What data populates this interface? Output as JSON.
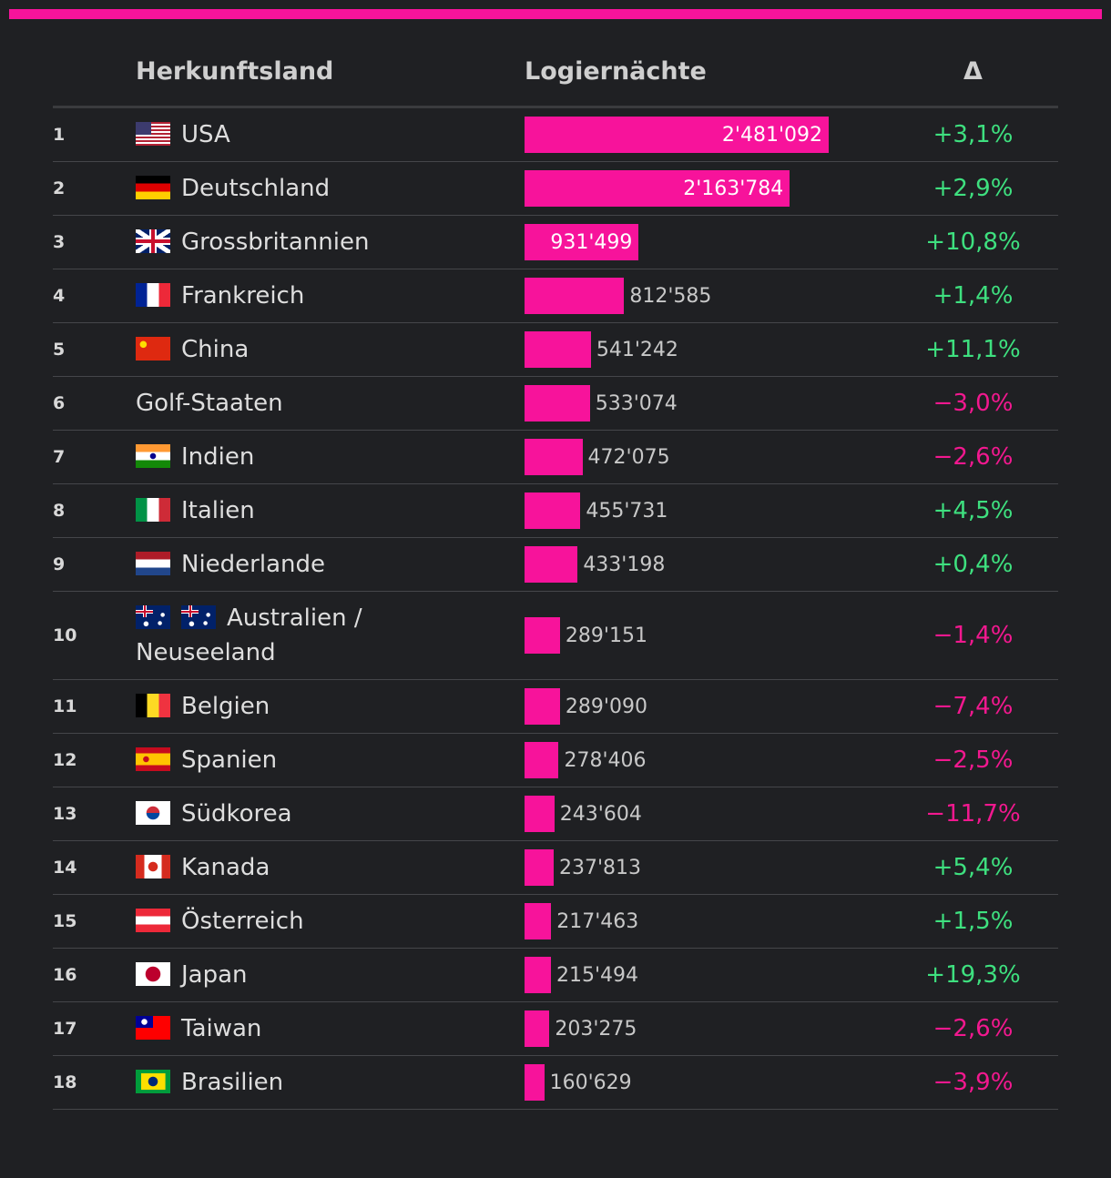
{
  "table": {
    "headers": [
      "Herkunftsland",
      "Logiernächte",
      "Δ"
    ],
    "rows": [
      {
        "rank": "1",
        "country": "USA",
        "value": 2481092,
        "value_label": "2'481'092",
        "delta": "+3,1%"
      },
      {
        "rank": "2",
        "country": "Deutschland",
        "value": 2163784,
        "value_label": "2'163'784",
        "delta": "+2,9%"
      },
      {
        "rank": "3",
        "country": "Grossbritannien",
        "value": 931499,
        "value_label": "931'499",
        "delta": "+10,8%"
      },
      {
        "rank": "4",
        "country": "Frankreich",
        "value": 812585,
        "value_label": "812'585",
        "delta": "+1,4%"
      },
      {
        "rank": "5",
        "country": "China",
        "value": 541242,
        "value_label": "541'242",
        "delta": "+11,1%"
      },
      {
        "rank": "6",
        "country": "Golf-Staaten",
        "value": 533074,
        "value_label": "533'074",
        "delta": "−3,0%"
      },
      {
        "rank": "7",
        "country": "Indien",
        "value": 472075,
        "value_label": "472'075",
        "delta": "−2,6%"
      },
      {
        "rank": "8",
        "country": "Italien",
        "value": 455731,
        "value_label": "455'731",
        "delta": "+4,5%"
      },
      {
        "rank": "9",
        "country": "Niederlande",
        "value": 433198,
        "value_label": "433'198",
        "delta": "+0,4%"
      },
      {
        "rank": "10",
        "country": "Australien / Neuseeland",
        "value": 289151,
        "value_label": "289'151",
        "delta": "−1,4%"
      },
      {
        "rank": "11",
        "country": "Belgien",
        "value": 289090,
        "value_label": "289'090",
        "delta": "−7,4%"
      },
      {
        "rank": "12",
        "country": "Spanien",
        "value": 278406,
        "value_label": "278'406",
        "delta": "−2,5%"
      },
      {
        "rank": "13",
        "country": "Südkorea",
        "value": 243604,
        "value_label": "243'604",
        "delta": "−11,7%"
      },
      {
        "rank": "14",
        "country": "Kanada",
        "value": 237813,
        "value_label": "237'813",
        "delta": "+5,4%"
      },
      {
        "rank": "15",
        "country": "Österreich",
        "value": 217463,
        "value_label": "217'463",
        "delta": "+1,5%"
      },
      {
        "rank": "16",
        "country": "Japan",
        "value": 215494,
        "value_label": "215'494",
        "delta": "+19,3%"
      },
      {
        "rank": "17",
        "country": "Taiwan",
        "value": 203275,
        "value_label": "203'275",
        "delta": "−2,6%"
      },
      {
        "rank": "18",
        "country": "Brasilien",
        "value": 160629,
        "value_label": "160'629",
        "delta": "−3,9%"
      }
    ]
  }
}
